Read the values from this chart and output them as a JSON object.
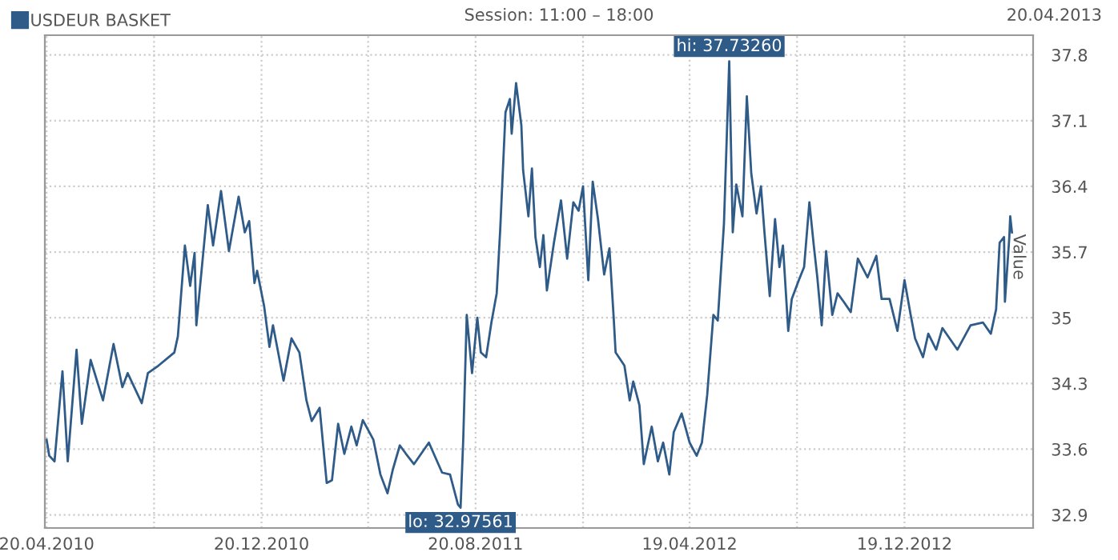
{
  "chart_data": {
    "type": "line",
    "subtitle": "Session: 11:00 – 18:00",
    "ylabel": "Value",
    "annotations": [
      "20.04.2013",
      {
        "text": "hi: 37.73260",
        "x": "2012-06-03",
        "y": 37.7326
      },
      {
        "text": "lo: 32.97561",
        "x": "2011-08-03",
        "y": 32.97561
      }
    ],
    "legend": "top left",
    "grid": true,
    "xlim": [
      "2010-04-18",
      "2013-05-14"
    ],
    "xticks": [
      {
        "value": "2010-04-20",
        "label": "20.04.2010"
      },
      {
        "value": "2010-08-20",
        "label": null
      },
      {
        "value": "2010-12-20",
        "label": "20.12.2010"
      },
      {
        "value": "2011-04-20",
        "label": null
      },
      {
        "value": "2011-08-20",
        "label": "20.08.2011"
      },
      {
        "value": "2011-12-20",
        "label": null
      },
      {
        "value": "2012-04-19",
        "label": "19.04.2012"
      },
      {
        "value": "2012-08-19",
        "label": null
      },
      {
        "value": "2012-12-19",
        "label": "19.12.2012"
      }
    ],
    "ylim": [
      32.76,
      38.01
    ],
    "yticks": [
      32.9,
      33.6,
      34.3,
      35,
      35.7,
      36.4,
      37.1,
      37.8
    ],
    "series": [
      {
        "name": "USDEUR BASKET",
        "color": "#2f5b88",
        "x": [
          "2010-04-20",
          "2010-04-23",
          "2010-04-29",
          "2010-05-08",
          "2010-05-14",
          "2010-05-24",
          "2010-05-30",
          "2010-06-09",
          "2010-06-23",
          "2010-07-05",
          "2010-07-15",
          "2010-07-21",
          "2010-08-06",
          "2010-08-13",
          "2010-08-25",
          "2010-09-12",
          "2010-09-16",
          "2010-09-24",
          "2010-09-30",
          "2010-10-05",
          "2010-10-07",
          "2010-10-20",
          "2010-10-26",
          "2010-11-04",
          "2010-11-13",
          "2010-11-24",
          "2010-12-01",
          "2010-12-06",
          "2010-12-12",
          "2010-12-15",
          "2010-12-23",
          "2010-12-29",
          "2011-01-02",
          "2011-01-14",
          "2011-01-23",
          "2011-02-01",
          "2011-02-09",
          "2011-02-15",
          "2011-02-24",
          "2011-03-04",
          "2011-03-10",
          "2011-03-17",
          "2011-03-24",
          "2011-04-01",
          "2011-04-07",
          "2011-04-14",
          "2011-04-26",
          "2011-05-04",
          "2011-05-12",
          "2011-05-18",
          "2011-05-26",
          "2011-06-02",
          "2011-06-11",
          "2011-06-28",
          "2011-07-13",
          "2011-07-22",
          "2011-07-31",
          "2011-08-03",
          "2011-08-06",
          "2011-08-10",
          "2011-08-16",
          "2011-08-22",
          "2011-08-26",
          "2011-09-01",
          "2011-09-07",
          "2011-09-13",
          "2011-09-17",
          "2011-09-23",
          "2011-09-28",
          "2011-09-30",
          "2011-10-05",
          "2011-10-11",
          "2011-10-13",
          "2011-10-19",
          "2011-10-23",
          "2011-10-27",
          "2011-11-01",
          "2011-11-05",
          "2011-11-09",
          "2011-11-17",
          "2011-11-25",
          "2011-12-02",
          "2011-12-09",
          "2011-12-15",
          "2011-12-20",
          "2011-12-26",
          "2011-12-31",
          "2012-01-06",
          "2012-01-13",
          "2012-01-19",
          "2012-01-24",
          "2012-01-26",
          "2012-02-05",
          "2012-02-11",
          "2012-02-15",
          "2012-02-22",
          "2012-02-27",
          "2012-03-07",
          "2012-03-14",
          "2012-03-20",
          "2012-03-27",
          "2012-04-01",
          "2012-04-10",
          "2012-04-19",
          "2012-04-27",
          "2012-05-03",
          "2012-05-09",
          "2012-05-16",
          "2012-05-21",
          "2012-05-28",
          "2012-06-03",
          "2012-06-07",
          "2012-06-11",
          "2012-06-18",
          "2012-06-23",
          "2012-06-28",
          "2012-07-04",
          "2012-07-09",
          "2012-07-13",
          "2012-07-19",
          "2012-07-25",
          "2012-07-30",
          "2012-08-03",
          "2012-08-09",
          "2012-08-13",
          "2012-08-21",
          "2012-08-27",
          "2012-09-02",
          "2012-09-07",
          "2012-09-11",
          "2012-09-16",
          "2012-09-21",
          "2012-09-28",
          "2012-10-04",
          "2012-10-11",
          "2012-10-19",
          "2012-10-27",
          "2012-11-01",
          "2012-11-07",
          "2012-11-17",
          "2012-11-23",
          "2012-12-02",
          "2012-12-11",
          "2012-12-19",
          "2012-12-26",
          "2012-12-31",
          "2013-01-09",
          "2013-01-15",
          "2013-01-24",
          "2013-01-31",
          "2013-02-17",
          "2013-03-04",
          "2013-03-18",
          "2013-03-27",
          "2013-04-02",
          "2013-04-06",
          "2013-04-11",
          "2013-04-12",
          "2013-04-17",
          "2013-04-18",
          "2013-04-20"
        ],
        "values": [
          33.7,
          33.53,
          33.47,
          34.43,
          33.47,
          34.66,
          33.87,
          34.55,
          34.12,
          34.72,
          34.26,
          34.41,
          34.09,
          34.41,
          34.49,
          34.63,
          34.8,
          35.77,
          35.34,
          35.69,
          34.92,
          36.2,
          35.77,
          36.35,
          35.71,
          36.29,
          35.91,
          36.03,
          35.37,
          35.5,
          35.12,
          34.69,
          34.92,
          34.33,
          34.78,
          34.63,
          34.12,
          33.9,
          34.04,
          33.24,
          33.27,
          33.87,
          33.55,
          33.84,
          33.64,
          33.91,
          33.7,
          33.33,
          33.13,
          33.38,
          33.64,
          33.55,
          33.44,
          33.67,
          33.35,
          33.33,
          33.01,
          32.97561,
          33.7,
          35.03,
          34.41,
          35.0,
          34.63,
          34.58,
          34.95,
          35.26,
          35.94,
          37.19,
          37.33,
          36.96,
          37.5,
          37.05,
          36.57,
          36.08,
          36.59,
          35.86,
          35.54,
          35.88,
          35.29,
          35.8,
          36.25,
          35.63,
          36.23,
          36.14,
          36.4,
          35.4,
          36.45,
          36.05,
          35.46,
          35.74,
          34.97,
          34.63,
          34.49,
          34.12,
          34.32,
          34.07,
          33.44,
          33.84,
          33.47,
          33.67,
          33.33,
          33.78,
          33.98,
          33.67,
          33.53,
          33.67,
          34.18,
          35.03,
          34.97,
          36.0,
          37.7326,
          35.91,
          36.42,
          36.08,
          37.36,
          36.54,
          36.11,
          36.4,
          35.91,
          35.23,
          36.05,
          35.54,
          35.77,
          34.86,
          35.2,
          35.4,
          35.54,
          36.23,
          35.77,
          35.43,
          34.92,
          35.71,
          35.03,
          35.26,
          35.17,
          35.06,
          35.63,
          35.54,
          35.43,
          35.66,
          35.2,
          35.2,
          34.86,
          35.4,
          35.03,
          34.78,
          34.58,
          34.83,
          34.66,
          34.89,
          34.66,
          34.92,
          34.95,
          34.83,
          35.09,
          35.8,
          35.86,
          35.17,
          35.86,
          36.08,
          35.91
        ]
      }
    ]
  }
}
